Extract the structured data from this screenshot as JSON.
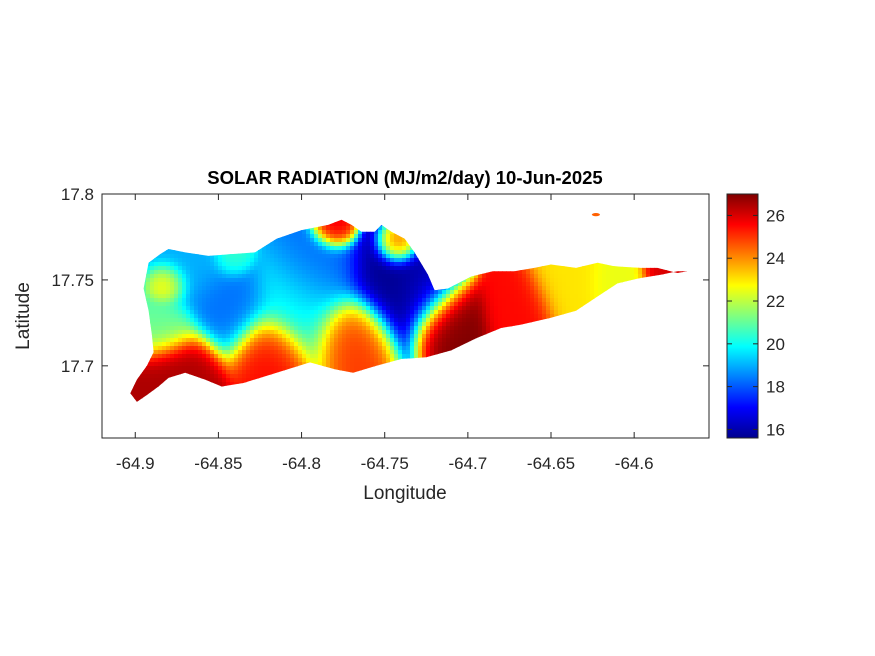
{
  "chart_data": {
    "type": "heatmap",
    "title": "SOLAR RADIATION (MJ/m2/day) 10-Jun-2025",
    "xlabel": "Longitude",
    "ylabel": "Latitude",
    "xlim": [
      -64.92,
      -64.555
    ],
    "ylim": [
      17.658,
      17.8
    ],
    "x_ticks": [
      -64.9,
      -64.85,
      -64.8,
      -64.75,
      -64.7,
      -64.65,
      -64.6
    ],
    "x_tick_labels": [
      "-64.9",
      "-64.85",
      "-64.8",
      "-64.75",
      "-64.7",
      "-64.65",
      "-64.6"
    ],
    "y_ticks": [
      17.7,
      17.75,
      17.8
    ],
    "y_tick_labels": [
      "17.7",
      "17.75",
      "17.8"
    ],
    "colorbar": {
      "min": 15.6,
      "max": 27.0,
      "ticks": [
        16,
        18,
        20,
        22,
        24,
        26
      ],
      "tick_labels": [
        "16",
        "18",
        "20",
        "22",
        "24",
        "26"
      ],
      "colormap": "jet"
    },
    "island_outline": [
      [
        -64.899,
        17.679
      ],
      [
        -64.893,
        17.683
      ],
      [
        -64.886,
        17.688
      ],
      [
        -64.88,
        17.693
      ],
      [
        -64.87,
        17.696
      ],
      [
        -64.858,
        17.692
      ],
      [
        -64.848,
        17.688
      ],
      [
        -64.835,
        17.69
      ],
      [
        -64.815,
        17.696
      ],
      [
        -64.795,
        17.702
      ],
      [
        -64.78,
        17.698
      ],
      [
        -64.769,
        17.696
      ],
      [
        -64.755,
        17.7
      ],
      [
        -64.74,
        17.704
      ],
      [
        -64.725,
        17.705
      ],
      [
        -64.71,
        17.709
      ],
      [
        -64.695,
        17.716
      ],
      [
        -64.68,
        17.722
      ],
      [
        -64.668,
        17.724
      ],
      [
        -64.65,
        17.728
      ],
      [
        -64.635,
        17.732
      ],
      [
        -64.621,
        17.741
      ],
      [
        -64.61,
        17.748
      ],
      [
        -64.597,
        17.751
      ],
      [
        -64.584,
        17.753
      ],
      [
        -64.574,
        17.755
      ],
      [
        -64.568,
        17.755
      ],
      [
        -64.574,
        17.754
      ],
      [
        -64.586,
        17.757
      ],
      [
        -64.596,
        17.757
      ],
      [
        -64.612,
        17.758
      ],
      [
        -64.622,
        17.76
      ],
      [
        -64.635,
        17.757
      ],
      [
        -64.65,
        17.759
      ],
      [
        -64.66,
        17.757
      ],
      [
        -64.672,
        17.755
      ],
      [
        -64.685,
        17.755
      ],
      [
        -64.698,
        17.752
      ],
      [
        -64.712,
        17.745
      ],
      [
        -64.72,
        17.744
      ],
      [
        -64.724,
        17.753
      ],
      [
        -64.732,
        17.766
      ],
      [
        -64.738,
        17.774
      ],
      [
        -64.746,
        17.778
      ],
      [
        -64.752,
        17.782
      ],
      [
        -64.756,
        17.778
      ],
      [
        -64.764,
        17.778
      ],
      [
        -64.77,
        17.782
      ],
      [
        -64.776,
        17.785
      ],
      [
        -64.784,
        17.782
      ],
      [
        -64.8,
        17.779
      ],
      [
        -64.815,
        17.774
      ],
      [
        -64.828,
        17.766
      ],
      [
        -64.842,
        17.765
      ],
      [
        -64.856,
        17.764
      ],
      [
        -64.87,
        17.766
      ],
      [
        -64.88,
        17.768
      ],
      [
        -64.885,
        17.765
      ],
      [
        -64.892,
        17.76
      ],
      [
        -64.895,
        17.745
      ],
      [
        -64.892,
        17.732
      ],
      [
        -64.89,
        17.718
      ],
      [
        -64.889,
        17.708
      ],
      [
        -64.893,
        17.7
      ],
      [
        -64.899,
        17.692
      ],
      [
        -64.903,
        17.684
      ]
    ],
    "islet": {
      "lon": -64.623,
      "lat": 17.788,
      "value": 24.5
    },
    "field_hotspots": [
      {
        "lon": -64.745,
        "lat": 17.748,
        "value": 15.8,
        "spread": 0.02
      },
      {
        "lon": -64.725,
        "lat": 17.745,
        "value": 16.4,
        "spread": 0.014
      },
      {
        "lon": -64.79,
        "lat": 17.753,
        "value": 18.2,
        "spread": 0.018
      },
      {
        "lon": -64.845,
        "lat": 17.733,
        "value": 18.3,
        "spread": 0.018
      },
      {
        "lon": -64.868,
        "lat": 17.757,
        "value": 19.0,
        "spread": 0.016
      },
      {
        "lon": -64.88,
        "lat": 17.748,
        "value": 23.5,
        "spread": 0.008
      },
      {
        "lon": -64.8,
        "lat": 17.735,
        "value": 20.0,
        "spread": 0.02
      },
      {
        "lon": -64.88,
        "lat": 17.722,
        "value": 21.0,
        "spread": 0.012
      },
      {
        "lon": -64.87,
        "lat": 17.7,
        "value": 26.5,
        "spread": 0.015
      },
      {
        "lon": -64.82,
        "lat": 17.708,
        "value": 25.5,
        "spread": 0.015
      },
      {
        "lon": -64.77,
        "lat": 17.72,
        "value": 25.0,
        "spread": 0.015
      },
      {
        "lon": -64.71,
        "lat": 17.728,
        "value": 27.0,
        "spread": 0.014
      },
      {
        "lon": -64.67,
        "lat": 17.735,
        "value": 25.5,
        "spread": 0.014
      },
      {
        "lon": -64.64,
        "lat": 17.748,
        "value": 23.0,
        "spread": 0.015
      },
      {
        "lon": -64.61,
        "lat": 17.748,
        "value": 22.5,
        "spread": 0.012
      },
      {
        "lon": -64.58,
        "lat": 17.754,
        "value": 26.0,
        "spread": 0.01
      },
      {
        "lon": -64.78,
        "lat": 17.78,
        "value": 26.0,
        "spread": 0.008
      },
      {
        "lon": -64.742,
        "lat": 17.77,
        "value": 25.5,
        "spread": 0.008
      },
      {
        "lon": -64.842,
        "lat": 17.763,
        "value": 20.5,
        "spread": 0.008
      }
    ]
  }
}
